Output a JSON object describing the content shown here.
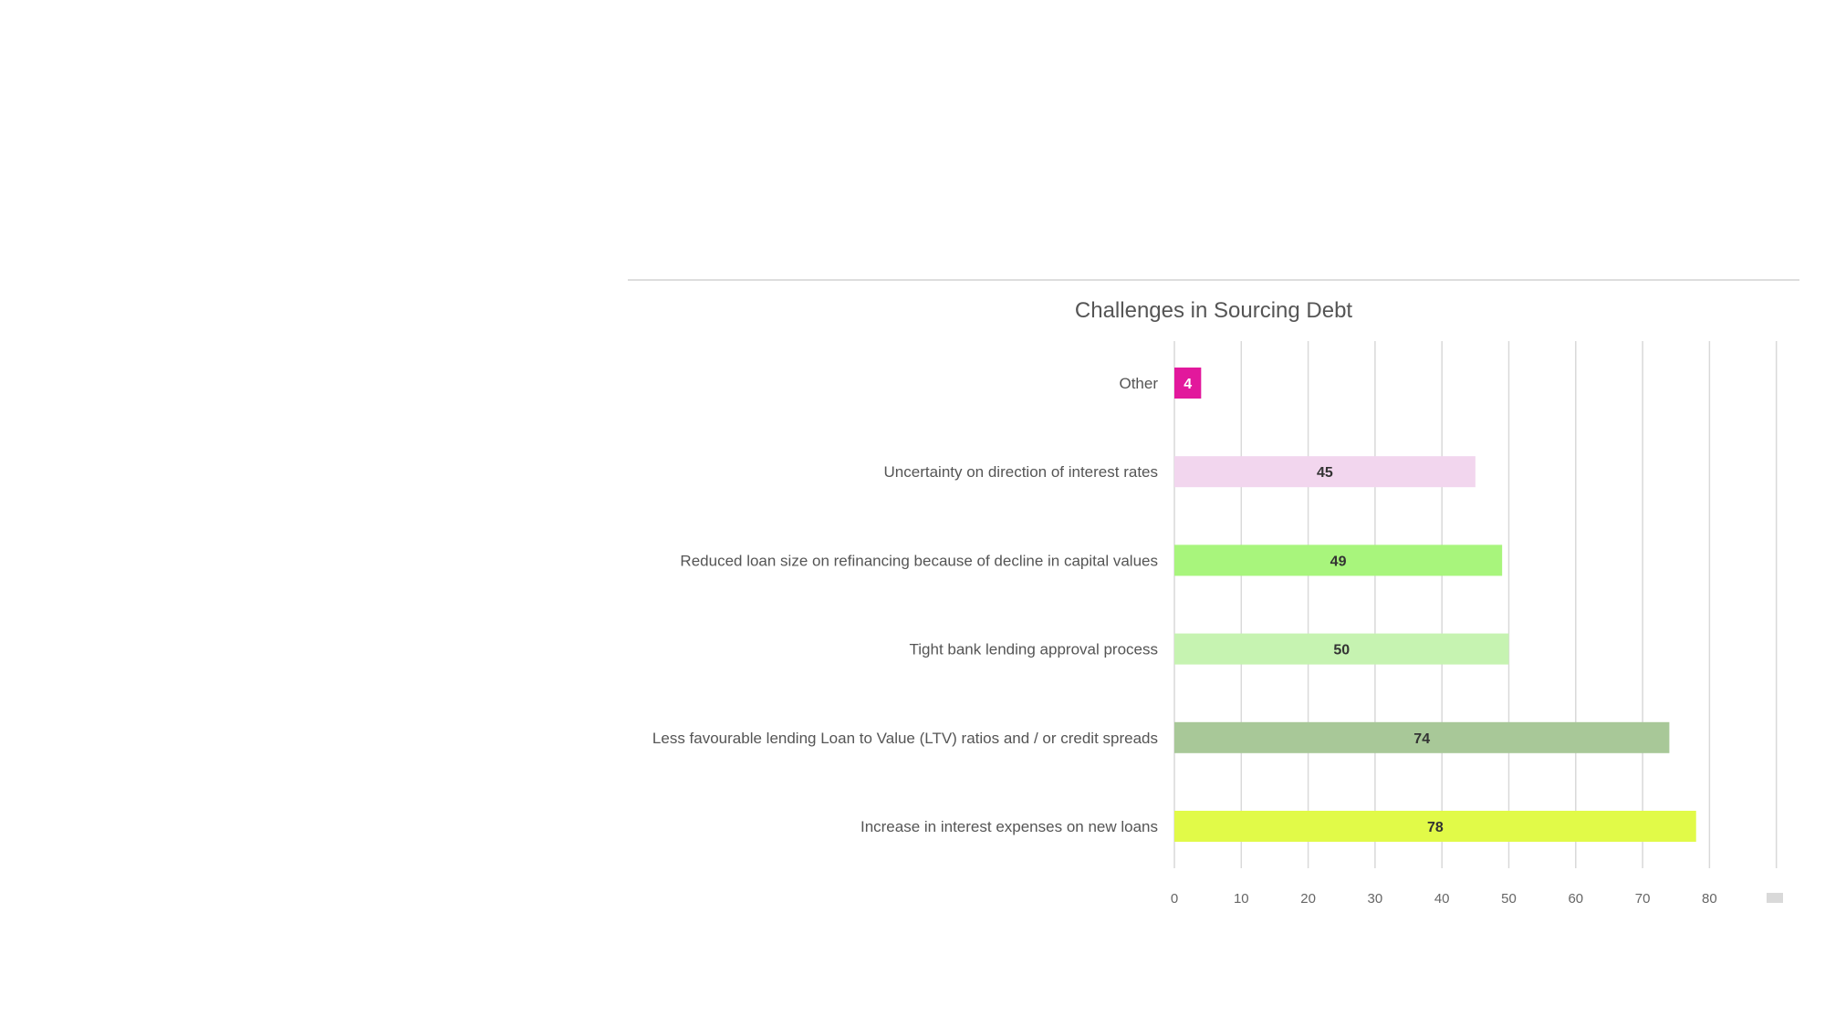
{
  "chart_data": {
    "type": "bar",
    "orientation": "horizontal",
    "title": "Challenges in Sourcing Debt",
    "xlabel": "",
    "ylabel": "",
    "xlim": [
      0,
      90
    ],
    "x_ticks": [
      0,
      10,
      20,
      30,
      40,
      50,
      60,
      70,
      80
    ],
    "grid": true,
    "categories": [
      "Other",
      "Uncertainty on direction of interest rates",
      "Reduced loan size on refinancing because of decline in capital values",
      "Tight bank lending approval process",
      "Less favourable lending Loan to Value (LTV) ratios and / or credit spreads",
      "Increase in interest expenses on new loans"
    ],
    "values": [
      4,
      45,
      49,
      50,
      74,
      78
    ],
    "value_labels": [
      "4",
      "45",
      "49",
      "50",
      "74",
      "78"
    ],
    "bar_colors": [
      "#e2189c",
      "#f2d6ee",
      "#a8f57c",
      "#c6f3b1",
      "#a8c898",
      "#e1fa48"
    ],
    "label_colors": [
      "#ffffff",
      "#333333",
      "#333333",
      "#333333",
      "#333333",
      "#333333"
    ]
  }
}
